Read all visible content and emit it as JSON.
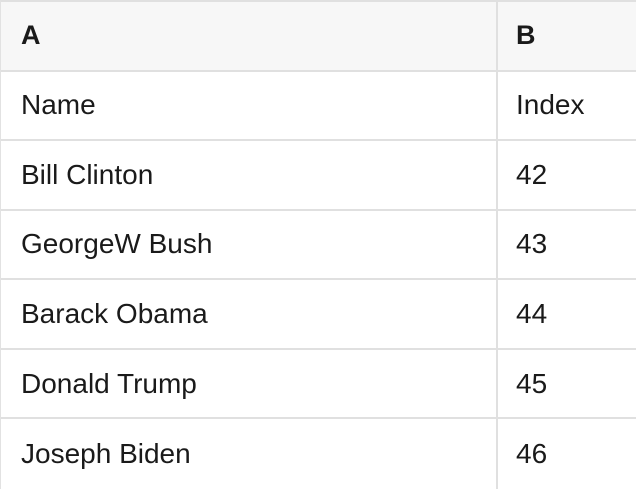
{
  "table": {
    "column_headers": [
      "A",
      "B"
    ],
    "rows": [
      {
        "a": "Name",
        "b": "Index"
      },
      {
        "a": "Bill Clinton",
        "b": "42"
      },
      {
        "a": "GeorgeW Bush",
        "b": "43"
      },
      {
        "a": "Barack Obama",
        "b": "44"
      },
      {
        "a": "Donald Trump",
        "b": "45"
      },
      {
        "a": "Joseph Biden",
        "b": "46"
      }
    ]
  },
  "colors": {
    "grid_border": "#e0e0e0",
    "header_background": "#f7f7f7",
    "text": "#1a1a1a"
  }
}
